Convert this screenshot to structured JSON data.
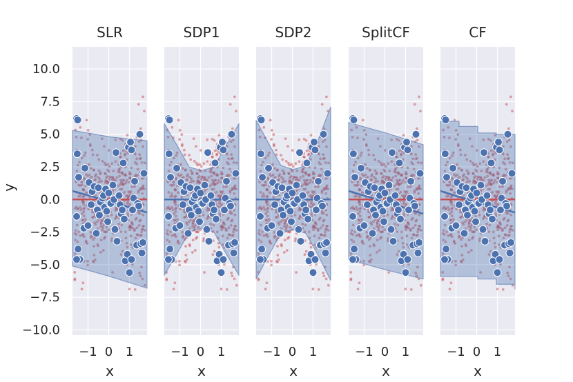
{
  "chart_data": {
    "type": "scatter",
    "ylabel": "y",
    "xlabel": "x",
    "xlim": [
      -1.75,
      1.85
    ],
    "ylim": [
      -10.4,
      11.7
    ],
    "xticks": [
      -1,
      0,
      1
    ],
    "xtick_labels": [
      "−1",
      "0",
      "1"
    ],
    "yticks": [
      10.0,
      7.5,
      5.0,
      2.5,
      0.0,
      -2.5,
      -5.0,
      -7.5,
      -10.0
    ],
    "ytick_labels": [
      "10.0",
      "7.5",
      "5.0",
      "2.5",
      "0.0",
      "−2.5",
      "−5.0",
      "−7.5",
      "−10.0"
    ],
    "colors": {
      "background": "#eaeaf2",
      "grid": "#ffffff",
      "band": "#4c72b0",
      "band_opacity": 0.35,
      "fit_line": "#4c72b0",
      "true_line": "#c44e52",
      "training_points": "#4c72b0",
      "background_points": "#c44e52"
    },
    "training_points": {
      "x": [
        -1.55,
        -1.5,
        -1.52,
        -1.45,
        -1.55,
        -1.48,
        -1.4,
        -1.55,
        -1.2,
        -1.15,
        -1.0,
        -0.95,
        -0.85,
        -0.8,
        -0.7,
        -0.6,
        -0.55,
        -0.5,
        -0.45,
        -0.4,
        -0.3,
        -0.25,
        -0.2,
        -0.15,
        -0.1,
        -0.05,
        0.0,
        0.05,
        0.1,
        0.2,
        0.25,
        0.3,
        0.35,
        0.4,
        0.5,
        0.55,
        0.6,
        0.65,
        0.7,
        0.75,
        0.8,
        0.9,
        0.95,
        1.0,
        1.05,
        1.1,
        1.1,
        1.15,
        1.2,
        1.25,
        1.35,
        1.4,
        1.45,
        1.5,
        1.55,
        1.6,
        1.65,
        1.7
      ],
      "y": [
        6.2,
        6.1,
        3.5,
        1.7,
        -1.3,
        -3.8,
        -4.6,
        -4.6,
        -2.2,
        2.4,
        -2.0,
        1.3,
        -0.4,
        0.6,
        1.0,
        -2.6,
        -0.8,
        0.9,
        -1.2,
        -0.2,
        0.1,
        0.3,
        -0.6,
        0.8,
        -0.9,
        -1.7,
        0.5,
        -0.3,
        -0.3,
        1.1,
        0.0,
        -2.3,
        3.6,
        -3.2,
        0.3,
        -0.4,
        -1.1,
        -0.8,
        2.8,
        -1.5,
        -4.7,
        -4.2,
        4.0,
        -5.6,
        4.4,
        3.8,
        -4.6,
        -0.8,
        0.1,
        1.4,
        -3.5,
        -0.3,
        -0.5,
        5.0,
        -3.4,
        -4.1,
        -3.3,
        2.0
      ]
    },
    "series": [
      {
        "name": "SLR",
        "title": "SLR",
        "band_lower": [
          -5.1,
          -5.9,
          -6.8
        ],
        "band_upper": [
          5.3,
          4.8,
          4.5
        ],
        "fit_line": [
          0.65,
          -0.15,
          -1.0
        ],
        "true_line": [
          0.0,
          0.0,
          0.0
        ]
      },
      {
        "name": "SDP1",
        "title": "SDP1",
        "band_lower": [
          -5.8,
          -4.2,
          -2.5,
          -2.2,
          -2.5,
          -4.2,
          -5.8
        ],
        "band_upper": [
          5.8,
          4.2,
          2.5,
          2.2,
          2.5,
          4.2,
          5.8
        ],
        "fit_line": [
          0.0,
          0.0,
          0.0,
          0.0,
          0.0,
          0.0,
          0.0
        ],
        "true_line": [
          0.0,
          0.0,
          0.0,
          0.0,
          0.0,
          0.0,
          0.0
        ]
      },
      {
        "name": "SDP2",
        "title": "SDP2",
        "band_lower": [
          -6.1,
          -4.3,
          -2.6,
          -2.3,
          -2.6,
          -4.3,
          -6.2
        ],
        "band_upper": [
          6.1,
          4.3,
          2.6,
          2.3,
          2.6,
          4.6,
          7.1
        ],
        "fit_line": [
          0.0,
          0.0,
          0.0,
          0.0,
          0.0,
          0.0,
          0.0
        ],
        "true_line": [
          0.0,
          0.0,
          0.0,
          0.0,
          0.0,
          0.0,
          0.0
        ]
      },
      {
        "name": "SplitCF",
        "title": "SplitCF",
        "band_lower": [
          -4.6,
          -5.4,
          -6.1
        ],
        "band_upper": [
          5.9,
          5.1,
          4.2
        ],
        "fit_line": [
          0.65,
          -0.2,
          -1.1
        ],
        "true_line": [
          0.0,
          0.0,
          0.0
        ]
      },
      {
        "name": "CF",
        "title": "CF",
        "band_lower": [
          -5.9,
          -5.9,
          -6.1,
          -6.5,
          -6.9
        ],
        "band_upper": [
          6.0,
          5.6,
          5.1,
          5.0,
          4.9
        ],
        "fit_line": [
          0.65,
          0.2,
          -0.2,
          -0.6,
          -1.0
        ],
        "true_line": [
          0.0,
          0.0,
          0.0,
          0.0,
          0.0
        ]
      }
    ]
  }
}
